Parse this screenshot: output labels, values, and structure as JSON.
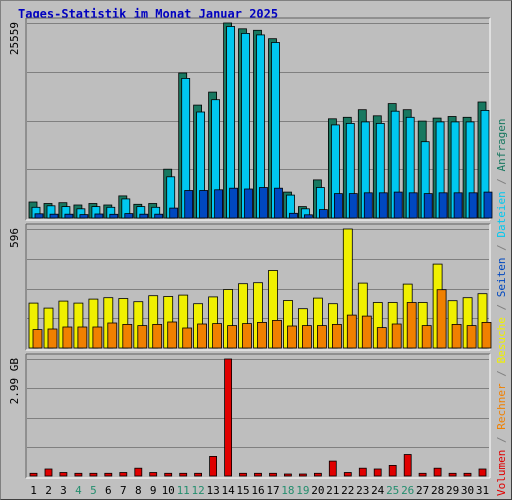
{
  "chart_data": {
    "title": "Tages-Statistik im Monat Januar 2025",
    "categories": [
      "1",
      "2",
      "3",
      "4",
      "5",
      "6",
      "7",
      "8",
      "9",
      "10",
      "11",
      "12",
      "13",
      "14",
      "15",
      "16",
      "17",
      "18",
      "19",
      "20",
      "21",
      "22",
      "23",
      "24",
      "25",
      "26",
      "27",
      "28",
      "29",
      "30",
      "31"
    ],
    "weekend_day_color": "#248e6e",
    "weekday_color": "#000000",
    "weekend_days": [
      "4",
      "5",
      "11",
      "12",
      "18",
      "19",
      "25",
      "26"
    ],
    "charts": [
      {
        "type": "bar",
        "panel": "top",
        "ymax_label": "25559",
        "ymax": 25559,
        "grid": true,
        "series": [
          {
            "name": "Anfragen",
            "color": "#187860",
            "values": [
              2100,
              1900,
              2000,
              1700,
              1900,
              1700,
              2900,
              1800,
              1900,
              6400,
              19000,
              14800,
              16500,
              26700,
              24800,
              24600,
              23500,
              3400,
              1500,
              5000,
              13000,
              13200,
              14200,
              13400,
              15000,
              14200,
              12700,
              13100,
              13300,
              13200,
              15200
            ]
          },
          {
            "name": "Dateien",
            "color": "#00c8f0",
            "values": [
              1400,
              1600,
              1500,
              1200,
              1500,
              1400,
              2500,
              1500,
              1400,
              5400,
              18300,
              13900,
              15500,
              25100,
              24200,
              24000,
              23000,
              3000,
              1200,
              4000,
              12200,
              12400,
              12600,
              12400,
              14000,
              13200,
              10000,
              12600,
              12600,
              12600,
              14100
            ]
          },
          {
            "name": "Seiten",
            "color": "#0048c0",
            "values": [
              550,
              500,
              500,
              450,
              520,
              480,
              580,
              500,
              500,
              1300,
              3600,
              3600,
              3700,
              3900,
              3800,
              4000,
              3900,
              620,
              420,
              1100,
              3200,
              3200,
              3300,
              3300,
              3400,
              3300,
              3200,
              3300,
              3300,
              3300,
              3400
            ]
          }
        ]
      },
      {
        "type": "bar",
        "panel": "middle",
        "ymax_label": "596",
        "ymax": 596,
        "grid": true,
        "series": [
          {
            "name": "Besuche",
            "color": "#f0f000",
            "values": [
              225,
              200,
              235,
              225,
              245,
              252,
              248,
              232,
              262,
              258,
              265,
              222,
              256,
              293,
              322,
              327,
              388,
              238,
              197,
              250,
              222,
              599,
              325,
              228,
              228,
              320,
              228,
              420,
              237,
              252,
              272
            ]
          },
          {
            "name": "Rechner",
            "color": "#f08000",
            "values": [
              92,
              95,
              105,
              105,
              105,
              125,
              118,
              112,
              118,
              130,
              100,
              120,
              122,
              112,
              122,
              128,
              138,
              110,
              112,
              112,
              118,
              165,
              160,
              102,
              120,
              228,
              112,
              292,
              118,
              112,
              128
            ]
          }
        ]
      },
      {
        "type": "bar",
        "panel": "bottom",
        "ymax_label": "2.99 GB",
        "ymax": 2.99,
        "grid": true,
        "series": [
          {
            "name": "Volumen",
            "color": "#e00000",
            "values": [
              0.07,
              0.18,
              0.09,
              0.07,
              0.07,
              0.07,
              0.09,
              0.2,
              0.09,
              0.07,
              0.07,
              0.07,
              0.5,
              3.0,
              0.07,
              0.07,
              0.07,
              0.05,
              0.05,
              0.07,
              0.38,
              0.09,
              0.2,
              0.18,
              0.27,
              0.55,
              0.07,
              0.2,
              0.07,
              0.07,
              0.18
            ]
          }
        ]
      }
    ],
    "right_legend": [
      {
        "text": "Volumen",
        "color": "#e00000"
      },
      {
        "text": " / ",
        "color": "#808080"
      },
      {
        "text": "Rechner",
        "color": "#f08000"
      },
      {
        "text": " / ",
        "color": "#808080"
      },
      {
        "text": "Besuche",
        "color": "#f0f000"
      },
      {
        "text": " / ",
        "color": "#808080"
      },
      {
        "text": "Seiten",
        "color": "#0048c0"
      },
      {
        "text": " / ",
        "color": "#808080"
      },
      {
        "text": "Dateien",
        "color": "#00c8f0"
      },
      {
        "text": " / ",
        "color": "#808080"
      },
      {
        "text": "Anfragen",
        "color": "#187860"
      }
    ]
  }
}
